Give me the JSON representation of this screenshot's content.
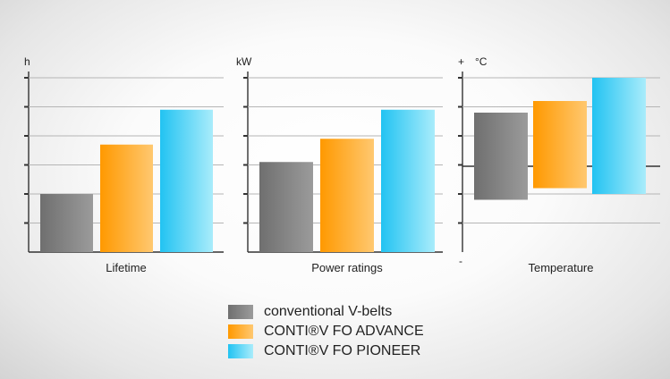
{
  "colors": {
    "conventional": [
      "#6f6f6f",
      "#9b9b9b"
    ],
    "advance": [
      "#ff9900",
      "#ffc870"
    ],
    "pioneer": [
      "#22c3f2",
      "#a9ecfb"
    ]
  },
  "legend": {
    "items": [
      {
        "label": "conventional V-belts",
        "color_key": "conventional"
      },
      {
        "label": "CONTI®V FO ADVANCE",
        "color_key": "advance"
      },
      {
        "label": "CONTI®V FO PIONEER",
        "color_key": "pioneer"
      }
    ]
  },
  "chart_data": [
    {
      "type": "bar",
      "title": "",
      "xlabel": "Lifetime",
      "ylabel": "h",
      "ylim": [
        0,
        6
      ],
      "grid": true,
      "series": [
        {
          "name": "conventional V-belts",
          "values": [
            2.0
          ]
        },
        {
          "name": "CONTI®V FO ADVANCE",
          "values": [
            3.7
          ]
        },
        {
          "name": "CONTI®V FO PIONEER",
          "values": [
            4.9
          ]
        }
      ]
    },
    {
      "type": "bar",
      "title": "",
      "xlabel": "Power ratings",
      "ylabel": "kW",
      "ylim": [
        0,
        6
      ],
      "grid": true,
      "series": [
        {
          "name": "conventional V-belts",
          "values": [
            3.1
          ]
        },
        {
          "name": "CONTI®V FO ADVANCE",
          "values": [
            3.9
          ]
        },
        {
          "name": "CONTI®V FO PIONEER",
          "values": [
            4.9
          ]
        }
      ]
    },
    {
      "type": "bar",
      "title": "",
      "xlabel": "Temperature",
      "ylabel": "°C",
      "plus_label": "+",
      "minus_label": "-",
      "ylim": [
        -3,
        3
      ],
      "grid": true,
      "series": [
        {
          "name": "conventional V-belts",
          "range": [
            -1.2,
            1.8
          ]
        },
        {
          "name": "CONTI®V FO ADVANCE",
          "range": [
            -0.8,
            2.2
          ]
        },
        {
          "name": "CONTI®V FO PIONEER",
          "range": [
            -1.0,
            3.0
          ]
        }
      ]
    }
  ]
}
